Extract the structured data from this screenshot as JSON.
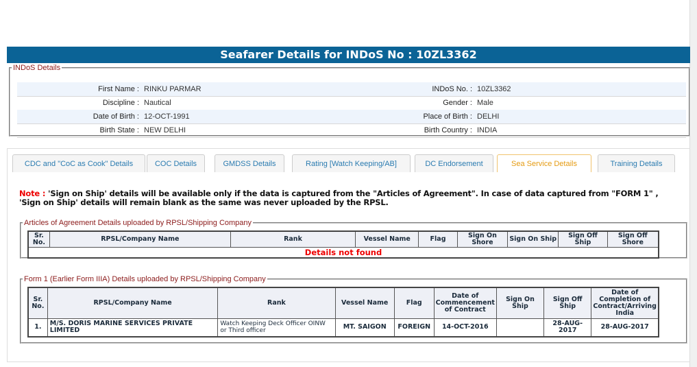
{
  "title": "Seafarer Details for INDoS No : 10ZL3362",
  "indos": {
    "legend": "INDoS Details",
    "rows": [
      {
        "l1": "First Name :",
        "v1": "RINKU PARMAR",
        "l2": "INDoS No. :",
        "v2": "10ZL3362"
      },
      {
        "l1": "Discipline :",
        "v1": "Nautical",
        "l2": "Gender :",
        "v2": "Male"
      },
      {
        "l1": "Date of Birth :",
        "v1": "12-OCT-1991",
        "l2": "Place of Birth :",
        "v2": "DELHI"
      },
      {
        "l1": "Birth State :",
        "v1": "NEW DELHI",
        "l2": "Birth Country :",
        "v2": "INDIA"
      }
    ]
  },
  "tabs": [
    "CDC and \"CoC as Cook\" Details",
    "COC Details",
    "GMDSS Details",
    "Rating [Watch Keeping/AB]",
    "DC Endorsement",
    "Sea Service Details",
    "Training Details"
  ],
  "active_tab": "Sea Service Details",
  "note": {
    "label": "Note :",
    "text": " 'Sign on Ship' details will be available only if the data is captured from the \"Articles of Agreement\". In case of data captured from \"FORM 1\" , 'Sign on Ship' details will remain blank as the same was never uploaded by the RPSL."
  },
  "articles": {
    "legend": "Articles of Agreement Details uploaded by RPSL/Shipping Company",
    "headers": [
      "Sr. No.",
      "RPSL/Company Name",
      "Rank",
      "Vessel Name",
      "Flag",
      "Sign On Shore",
      "Sign On Ship",
      "Sign Off Ship",
      "Sign Off Shore"
    ],
    "empty": "Details not found"
  },
  "form1": {
    "legend": "Form 1 (Earlier Form IIIA) Details uploaded by RPSL/Shipping Company",
    "headers": [
      "Sr. No.",
      "RPSL/Company Name",
      "Rank",
      "Vessel Name",
      "Flag",
      "Date of Commencement of Contract",
      "Sign On Ship",
      "Sign Off Ship",
      "Date of Completion of Contract/Arriving India"
    ],
    "rows": [
      [
        "1.",
        "M/S. DORIS MARINE SERVICES PRIVATE LIMITED",
        "Watch Keeping Deck Officer OINW or Third officer",
        "MT. SAIGON",
        "FOREIGN",
        "14-OCT-2016",
        "",
        "28-AUG-2017",
        "28-AUG-2017"
      ]
    ]
  },
  "colors": {
    "header": "#0b6396",
    "legend": "#8b1a1a",
    "active_tab": "#e59b12",
    "tab": "#2a7bb0",
    "error": "#ee0000"
  }
}
